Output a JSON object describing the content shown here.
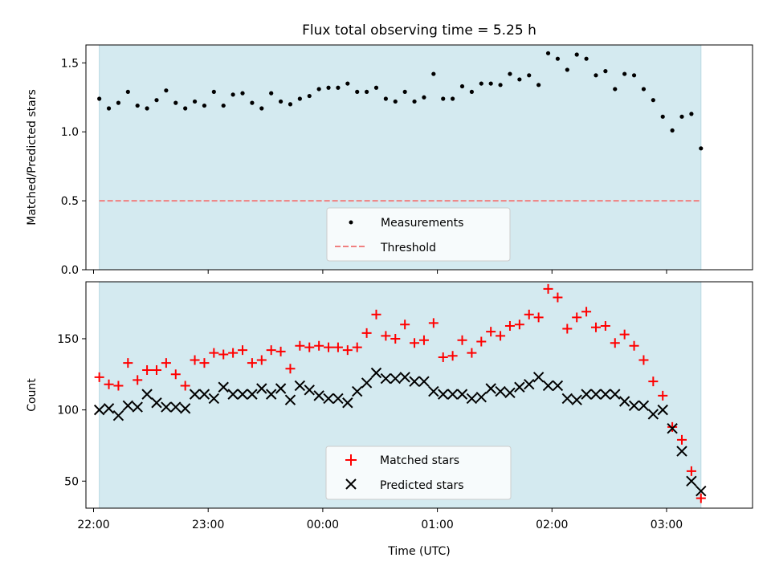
{
  "chart_data": [
    {
      "type": "scatter",
      "title": "Flux total observing time = 5.25 h",
      "xlabel": "",
      "ylabel": "Matched/Predicted stars",
      "xlim": [
        "21:56",
        "03:45"
      ],
      "ylim": [
        0,
        1.63
      ],
      "yticks": [
        0.0,
        0.5,
        1.0,
        1.5
      ],
      "ytick_labels": [
        "0.0",
        "0.5",
        "1.0",
        "1.5"
      ],
      "shaded_span": [
        "22:03",
        "03:18"
      ],
      "shade_color": "#d4eaf0",
      "legend_position": "bottom-center",
      "series": [
        {
          "name": "Measurements",
          "marker": "dot",
          "color": "#000000",
          "x": [
            "22:03",
            "22:08",
            "22:13",
            "22:18",
            "22:23",
            "22:28",
            "22:33",
            "22:38",
            "22:43",
            "22:48",
            "22:53",
            "22:58",
            "23:03",
            "23:08",
            "23:13",
            "23:18",
            "23:23",
            "23:28",
            "23:33",
            "23:38",
            "23:43",
            "23:48",
            "23:53",
            "23:58",
            "00:03",
            "00:08",
            "00:13",
            "00:18",
            "00:23",
            "00:28",
            "00:33",
            "00:38",
            "00:43",
            "00:48",
            "00:53",
            "00:58",
            "01:03",
            "01:08",
            "01:13",
            "01:18",
            "01:23",
            "01:28",
            "01:33",
            "01:38",
            "01:43",
            "01:48",
            "01:53",
            "01:58",
            "02:03",
            "02:08",
            "02:13",
            "02:18",
            "02:23",
            "02:28",
            "02:33",
            "02:38",
            "02:43",
            "02:48",
            "02:53",
            "02:58",
            "03:03",
            "03:08",
            "03:13",
            "03:18"
          ],
          "y": [
            1.24,
            1.17,
            1.21,
            1.29,
            1.19,
            1.17,
            1.23,
            1.3,
            1.21,
            1.17,
            1.22,
            1.19,
            1.29,
            1.19,
            1.27,
            1.28,
            1.21,
            1.17,
            1.28,
            1.22,
            1.2,
            1.24,
            1.26,
            1.31,
            1.32,
            1.32,
            1.35,
            1.29,
            1.29,
            1.32,
            1.24,
            1.22,
            1.29,
            1.22,
            1.25,
            1.42,
            1.24,
            1.24,
            1.33,
            1.29,
            1.35,
            1.35,
            1.34,
            1.42,
            1.38,
            1.41,
            1.34,
            1.57,
            1.53,
            1.45,
            1.56,
            1.53,
            1.41,
            1.44,
            1.31,
            1.42,
            1.41,
            1.31,
            1.23,
            1.11,
            1.01,
            1.11,
            1.13,
            0.88
          ]
        },
        {
          "name": "Threshold",
          "marker": "dashed-line",
          "color": "#f08080",
          "x": [
            "22:03",
            "03:18"
          ],
          "y": [
            0.5,
            0.5
          ]
        }
      ]
    },
    {
      "type": "scatter",
      "title": "",
      "xlabel": "Time (UTC)",
      "ylabel": "Count",
      "xlim": [
        "21:56",
        "03:45"
      ],
      "ylim": [
        31,
        190
      ],
      "yticks": [
        50,
        100,
        150
      ],
      "ytick_labels": [
        "50",
        "100",
        "150"
      ],
      "xticks": [
        "22:00",
        "23:00",
        "00:00",
        "01:00",
        "02:00",
        "03:00"
      ],
      "xtick_labels": [
        "22:00",
        "23:00",
        "00:00",
        "01:00",
        "02:00",
        "03:00"
      ],
      "shaded_span": [
        "22:03",
        "03:18"
      ],
      "shade_color": "#d4eaf0",
      "legend_position": "bottom-center",
      "series": [
        {
          "name": "Matched stars",
          "marker": "plus",
          "color": "#ff0000",
          "x": [
            "22:03",
            "22:08",
            "22:13",
            "22:18",
            "22:23",
            "22:28",
            "22:33",
            "22:38",
            "22:43",
            "22:48",
            "22:53",
            "22:58",
            "23:03",
            "23:08",
            "23:13",
            "23:18",
            "23:23",
            "23:28",
            "23:33",
            "23:38",
            "23:43",
            "23:48",
            "23:53",
            "23:58",
            "00:03",
            "00:08",
            "00:13",
            "00:18",
            "00:23",
            "00:28",
            "00:33",
            "00:38",
            "00:43",
            "00:48",
            "00:53",
            "00:58",
            "01:03",
            "01:08",
            "01:13",
            "01:18",
            "01:23",
            "01:28",
            "01:33",
            "01:38",
            "01:43",
            "01:48",
            "01:53",
            "01:58",
            "02:03",
            "02:08",
            "02:13",
            "02:18",
            "02:23",
            "02:28",
            "02:33",
            "02:38",
            "02:43",
            "02:48",
            "02:53",
            "02:58",
            "03:03",
            "03:08",
            "03:13",
            "03:18"
          ],
          "y": [
            123,
            118,
            117,
            133,
            121,
            128,
            128,
            133,
            125,
            117,
            135,
            133,
            140,
            139,
            140,
            142,
            133,
            135,
            142,
            141,
            129,
            145,
            144,
            145,
            144,
            144,
            142,
            144,
            154,
            167,
            152,
            150,
            160,
            147,
            149,
            161,
            137,
            138,
            149,
            140,
            148,
            155,
            152,
            159,
            160,
            167,
            165,
            185,
            179,
            157,
            165,
            169,
            158,
            159,
            147,
            153,
            145,
            135,
            120,
            110,
            88,
            79,
            57,
            38
          ]
        },
        {
          "name": "Predicted stars",
          "marker": "x",
          "color": "#000000",
          "x": [
            "22:03",
            "22:08",
            "22:13",
            "22:18",
            "22:23",
            "22:28",
            "22:33",
            "22:38",
            "22:43",
            "22:48",
            "22:53",
            "22:58",
            "23:03",
            "23:08",
            "23:13",
            "23:18",
            "23:23",
            "23:28",
            "23:33",
            "23:38",
            "23:43",
            "23:48",
            "23:53",
            "23:58",
            "00:03",
            "00:08",
            "00:13",
            "00:18",
            "00:23",
            "00:28",
            "00:33",
            "00:38",
            "00:43",
            "00:48",
            "00:53",
            "00:58",
            "01:03",
            "01:08",
            "01:13",
            "01:18",
            "01:23",
            "01:28",
            "01:33",
            "01:38",
            "01:43",
            "01:48",
            "01:53",
            "01:58",
            "02:03",
            "02:08",
            "02:13",
            "02:18",
            "02:23",
            "02:28",
            "02:33",
            "02:38",
            "02:43",
            "02:48",
            "02:53",
            "02:58",
            "03:03",
            "03:08",
            "03:13",
            "03:18"
          ],
          "y": [
            100,
            101,
            96,
            103,
            102,
            111,
            105,
            102,
            102,
            101,
            111,
            111,
            108,
            116,
            111,
            111,
            111,
            115,
            111,
            115,
            107,
            117,
            114,
            110,
            108,
            108,
            105,
            113,
            119,
            126,
            122,
            122,
            123,
            120,
            120,
            113,
            111,
            111,
            111,
            108,
            109,
            115,
            113,
            112,
            116,
            118,
            123,
            117,
            117,
            108,
            107,
            111,
            111,
            111,
            111,
            106,
            103,
            103,
            97,
            100,
            87,
            71,
            50,
            43
          ]
        }
      ]
    }
  ]
}
